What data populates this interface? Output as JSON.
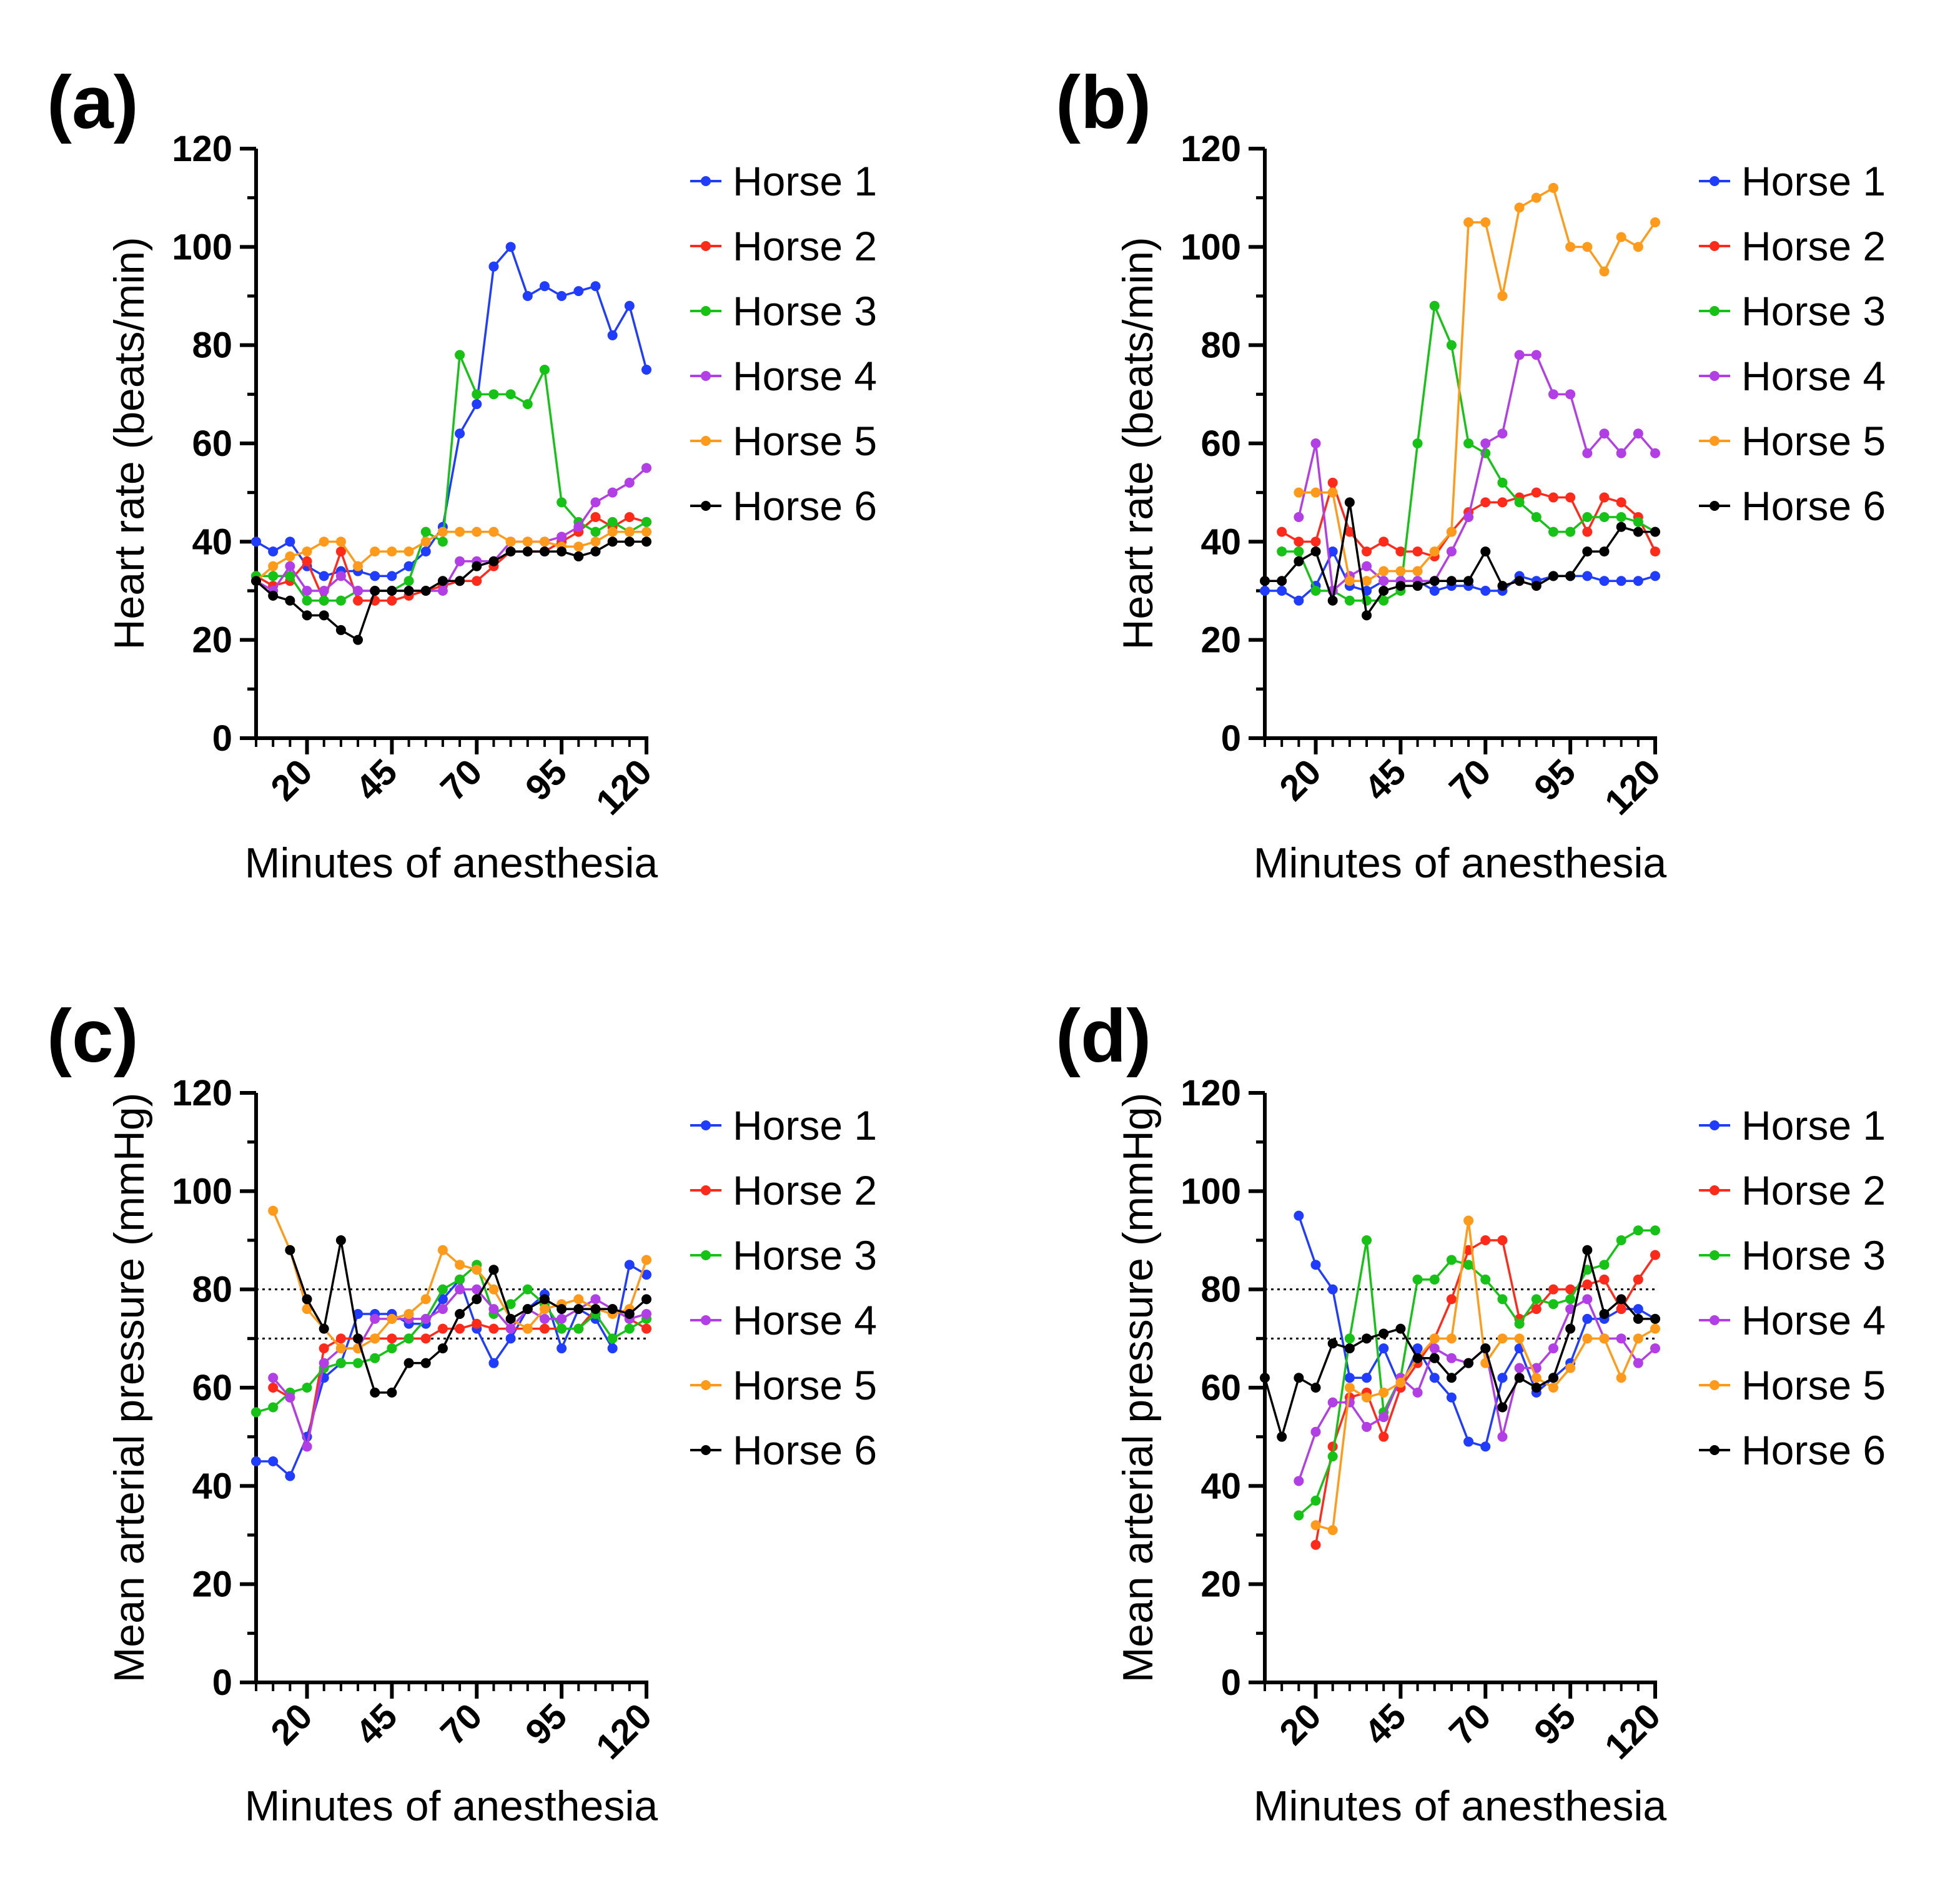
{
  "series_colors": [
    "#1f3cff",
    "#ff2a1a",
    "#17c217",
    "#b23ee6",
    "#ff9a1a",
    "#000000"
  ],
  "chart_data": [
    {
      "panel_label": "(a)",
      "type": "line",
      "xlabel": "Minutes of anesthesia",
      "ylabel": "Heart rate (beats/min)",
      "ylim": [
        0,
        120
      ],
      "yticks": [
        0,
        20,
        40,
        60,
        80,
        100,
        120
      ],
      "xlim": [
        5,
        120
      ],
      "xticks": [
        20,
        45,
        70,
        95,
        120
      ],
      "x": [
        5,
        10,
        15,
        20,
        25,
        30,
        35,
        40,
        45,
        50,
        55,
        60,
        65,
        70,
        75,
        80,
        85,
        90,
        95,
        100,
        105,
        110,
        115,
        120
      ],
      "legend": [
        "Horse 1",
        "Horse 2",
        "Horse 3",
        "Horse 4",
        "Horse 5",
        "Horse 6"
      ],
      "reference_lines": [],
      "series": [
        {
          "name": "Horse 1",
          "values": [
            40,
            38,
            40,
            35,
            33,
            34,
            34,
            33,
            33,
            35,
            38,
            43,
            62,
            68,
            96,
            100,
            90,
            92,
            90,
            91,
            92,
            82,
            88,
            75
          ]
        },
        {
          "name": "Horse 2",
          "values": [
            33,
            31,
            32,
            36,
            28,
            38,
            28,
            28,
            28,
            29,
            30,
            31,
            32,
            32,
            35,
            38,
            38,
            38,
            40,
            42,
            45,
            43,
            45,
            44
          ]
        },
        {
          "name": "Horse 3",
          "values": [
            33,
            33,
            33,
            28,
            28,
            28,
            30,
            30,
            30,
            32,
            42,
            40,
            78,
            70,
            70,
            70,
            68,
            75,
            48,
            44,
            42,
            44,
            42,
            44
          ]
        },
        {
          "name": "Horse 4",
          "values": [
            32,
            30,
            35,
            30,
            30,
            33,
            30,
            30,
            30,
            30,
            30,
            30,
            36,
            36,
            36,
            40,
            40,
            40,
            41,
            43,
            48,
            50,
            52,
            55
          ]
        },
        {
          "name": "Horse 5",
          "values": [
            32,
            35,
            37,
            38,
            40,
            40,
            35,
            38,
            38,
            38,
            40,
            42,
            42,
            42,
            42,
            40,
            40,
            40,
            39,
            39,
            40,
            42,
            42,
            42
          ]
        },
        {
          "name": "Horse 6",
          "values": [
            32,
            29,
            28,
            25,
            25,
            22,
            20,
            30,
            30,
            30,
            30,
            32,
            32,
            35,
            36,
            38,
            38,
            38,
            38,
            37,
            38,
            40,
            40,
            40
          ]
        }
      ]
    },
    {
      "panel_label": "(b)",
      "type": "line",
      "xlabel": "Minutes of anesthesia",
      "ylabel": "Heart rate (beats/min)",
      "ylim": [
        0,
        120
      ],
      "yticks": [
        0,
        20,
        40,
        60,
        80,
        100,
        120
      ],
      "xlim": [
        5,
        120
      ],
      "xticks": [
        20,
        45,
        70,
        95,
        120
      ],
      "x": [
        5,
        10,
        15,
        20,
        25,
        30,
        35,
        40,
        45,
        50,
        55,
        60,
        65,
        70,
        75,
        80,
        85,
        90,
        95,
        100,
        105,
        110,
        115,
        120
      ],
      "legend": [
        "Horse 1",
        "Horse 2",
        "Horse 3",
        "Horse 4",
        "Horse 5",
        "Horse 6"
      ],
      "reference_lines": [],
      "series": [
        {
          "name": "Horse 1",
          "values": [
            30,
            30,
            28,
            31,
            38,
            31,
            30,
            32,
            32,
            32,
            30,
            31,
            31,
            30,
            30,
            33,
            32,
            33,
            33,
            33,
            32,
            32,
            32,
            33
          ]
        },
        {
          "name": "Horse 2",
          "values": [
            null,
            42,
            40,
            40,
            52,
            42,
            38,
            40,
            38,
            38,
            37,
            42,
            46,
            48,
            48,
            49,
            50,
            49,
            49,
            42,
            49,
            48,
            45,
            38
          ]
        },
        {
          "name": "Horse 3",
          "values": [
            null,
            38,
            38,
            30,
            30,
            28,
            28,
            28,
            30,
            60,
            88,
            80,
            60,
            58,
            52,
            48,
            45,
            42,
            42,
            45,
            45,
            45,
            44,
            42
          ]
        },
        {
          "name": "Horse 4",
          "values": [
            null,
            null,
            45,
            60,
            30,
            33,
            35,
            32,
            32,
            32,
            32,
            38,
            45,
            60,
            62,
            78,
            78,
            70,
            70,
            58,
            62,
            58,
            62,
            58
          ]
        },
        {
          "name": "Horse 5",
          "values": [
            null,
            null,
            50,
            50,
            50,
            32,
            32,
            34,
            34,
            34,
            38,
            42,
            105,
            105,
            90,
            108,
            110,
            112,
            100,
            100,
            95,
            102,
            100,
            105
          ]
        },
        {
          "name": "Horse 6",
          "values": [
            32,
            32,
            36,
            38,
            28,
            48,
            25,
            30,
            31,
            31,
            32,
            32,
            32,
            38,
            31,
            32,
            31,
            33,
            33,
            38,
            38,
            43,
            42,
            42
          ]
        }
      ]
    },
    {
      "panel_label": "(c)",
      "type": "line",
      "xlabel": "Minutes of anesthesia",
      "ylabel": "Mean arterial pressure (mmHg)",
      "ylim": [
        0,
        120
      ],
      "yticks": [
        0,
        20,
        40,
        60,
        80,
        100,
        120
      ],
      "xlim": [
        5,
        120
      ],
      "xticks": [
        20,
        45,
        70,
        95,
        120
      ],
      "x": [
        5,
        10,
        15,
        20,
        25,
        30,
        35,
        40,
        45,
        50,
        55,
        60,
        65,
        70,
        75,
        80,
        85,
        90,
        95,
        100,
        105,
        110,
        115,
        120
      ],
      "legend": [
        "Horse 1",
        "Horse 2",
        "Horse 3",
        "Horse 4",
        "Horse 5",
        "Horse 6"
      ],
      "reference_lines": [
        70,
        80
      ],
      "series": [
        {
          "name": "Horse 1",
          "values": [
            45,
            45,
            42,
            50,
            62,
            65,
            75,
            75,
            75,
            73,
            73,
            78,
            82,
            72,
            65,
            70,
            76,
            79,
            68,
            76,
            74,
            68,
            85,
            83
          ]
        },
        {
          "name": "Horse 2",
          "values": [
            null,
            60,
            58,
            48,
            68,
            70,
            70,
            70,
            70,
            70,
            70,
            72,
            72,
            73,
            72,
            72,
            72,
            72,
            72,
            72,
            76,
            76,
            74,
            72
          ]
        },
        {
          "name": "Horse 3",
          "values": [
            55,
            56,
            59,
            60,
            64,
            65,
            65,
            66,
            68,
            70,
            74,
            80,
            82,
            85,
            75,
            77,
            80,
            77,
            72,
            72,
            75,
            70,
            72,
            74
          ]
        },
        {
          "name": "Horse 4",
          "values": [
            null,
            62,
            58,
            48,
            65,
            68,
            68,
            74,
            74,
            74,
            74,
            76,
            80,
            80,
            76,
            72,
            76,
            74,
            74,
            76,
            78,
            76,
            74,
            75
          ]
        },
        {
          "name": "Horse 5",
          "values": [
            null,
            96,
            88,
            76,
            72,
            68,
            68,
            70,
            74,
            75,
            78,
            88,
            85,
            84,
            80,
            74,
            72,
            76,
            77,
            78,
            76,
            75,
            76,
            86
          ]
        },
        {
          "name": "Horse 6",
          "values": [
            null,
            null,
            88,
            78,
            72,
            90,
            70,
            59,
            59,
            65,
            65,
            68,
            75,
            78,
            84,
            74,
            76,
            78,
            76,
            76,
            76,
            76,
            75,
            78
          ]
        }
      ]
    },
    {
      "panel_label": "(d)",
      "type": "line",
      "xlabel": "Minutes of anesthesia",
      "ylabel": "Mean arterial pressure (mmHg)",
      "ylim": [
        0,
        120
      ],
      "yticks": [
        0,
        20,
        40,
        60,
        80,
        100,
        120
      ],
      "xlim": [
        5,
        120
      ],
      "xticks": [
        20,
        45,
        70,
        95,
        120
      ],
      "x": [
        5,
        10,
        15,
        20,
        25,
        30,
        35,
        40,
        45,
        50,
        55,
        60,
        65,
        70,
        75,
        80,
        85,
        90,
        95,
        100,
        105,
        110,
        115,
        120
      ],
      "legend": [
        "Horse 1",
        "Horse 2",
        "Horse 3",
        "Horse 4",
        "Horse 5",
        "Horse 6"
      ],
      "reference_lines": [
        70,
        80
      ],
      "series": [
        {
          "name": "Horse 1",
          "values": [
            null,
            null,
            95,
            85,
            80,
            62,
            62,
            68,
            60,
            68,
            62,
            58,
            49,
            48,
            62,
            68,
            59,
            62,
            65,
            74,
            74,
            76,
            76,
            74
          ]
        },
        {
          "name": "Horse 2",
          "values": [
            null,
            null,
            null,
            28,
            48,
            58,
            59,
            50,
            60,
            65,
            70,
            78,
            88,
            90,
            90,
            74,
            76,
            80,
            80,
            81,
            82,
            76,
            82,
            87
          ]
        },
        {
          "name": "Horse 3",
          "values": [
            null,
            null,
            34,
            37,
            46,
            70,
            90,
            55,
            62,
            82,
            82,
            86,
            85,
            82,
            78,
            73,
            78,
            77,
            78,
            84,
            85,
            90,
            92,
            92
          ]
        },
        {
          "name": "Horse 4",
          "values": [
            null,
            null,
            41,
            51,
            57,
            57,
            52,
            54,
            62,
            59,
            68,
            66,
            65,
            68,
            50,
            64,
            64,
            68,
            76,
            78,
            70,
            70,
            65,
            68
          ]
        },
        {
          "name": "Horse 5",
          "values": [
            null,
            null,
            null,
            32,
            31,
            60,
            58,
            59,
            61,
            66,
            70,
            70,
            94,
            65,
            70,
            70,
            62,
            60,
            64,
            70,
            70,
            62,
            70,
            72
          ]
        },
        {
          "name": "Horse 6",
          "values": [
            62,
            50,
            62,
            60,
            69,
            68,
            70,
            71,
            72,
            66,
            66,
            62,
            65,
            68,
            56,
            62,
            60,
            62,
            72,
            88,
            75,
            78,
            74,
            74
          ]
        }
      ]
    }
  ]
}
